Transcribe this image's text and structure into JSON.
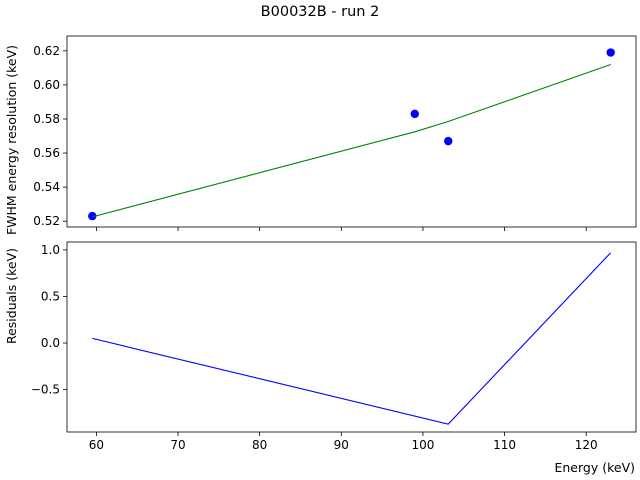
{
  "chart_data": {
    "type": "scatter",
    "title": "B00032B - run 2",
    "xlabel": "Energy (keV)",
    "xlim": [
      56.4,
      126.1
    ],
    "xticks": [
      60,
      70,
      80,
      90,
      100,
      110,
      120
    ],
    "panels": [
      {
        "ylabel": "FWHM energy resolution (keV)",
        "ylim": [
          0.5166,
          0.6287
        ],
        "yticks": [
          "0.52",
          "0.54",
          "0.56",
          "0.58",
          "0.60",
          "0.62"
        ],
        "ytick_values": [
          0.52,
          0.54,
          0.56,
          0.58,
          0.6,
          0.62
        ],
        "series": [
          {
            "kind": "points",
            "color": "#0000ff",
            "x": [
              59.5,
              99.0,
              103.1,
              123.0
            ],
            "y": [
              0.523,
              0.583,
              0.567,
              0.619
            ]
          },
          {
            "kind": "line",
            "color": "#008000",
            "x": [
              59.5,
              99.0,
              103.1,
              123.0
            ],
            "y": [
              0.5225,
              0.5725,
              0.5785,
              0.612
            ]
          }
        ]
      },
      {
        "ylabel": "Residuals (keV)",
        "ylim": [
          -0.955,
          1.085
        ],
        "yticks": [
          "−0.5",
          "0.0",
          "0.5",
          "1.0"
        ],
        "ytick_values": [
          -0.5,
          0.0,
          0.5,
          1.0
        ],
        "series": [
          {
            "kind": "line",
            "color": "#0000ff",
            "x": [
              59.5,
              103.1,
              123.0
            ],
            "y": [
              0.05,
              -0.87,
              0.97
            ]
          }
        ]
      }
    ]
  }
}
